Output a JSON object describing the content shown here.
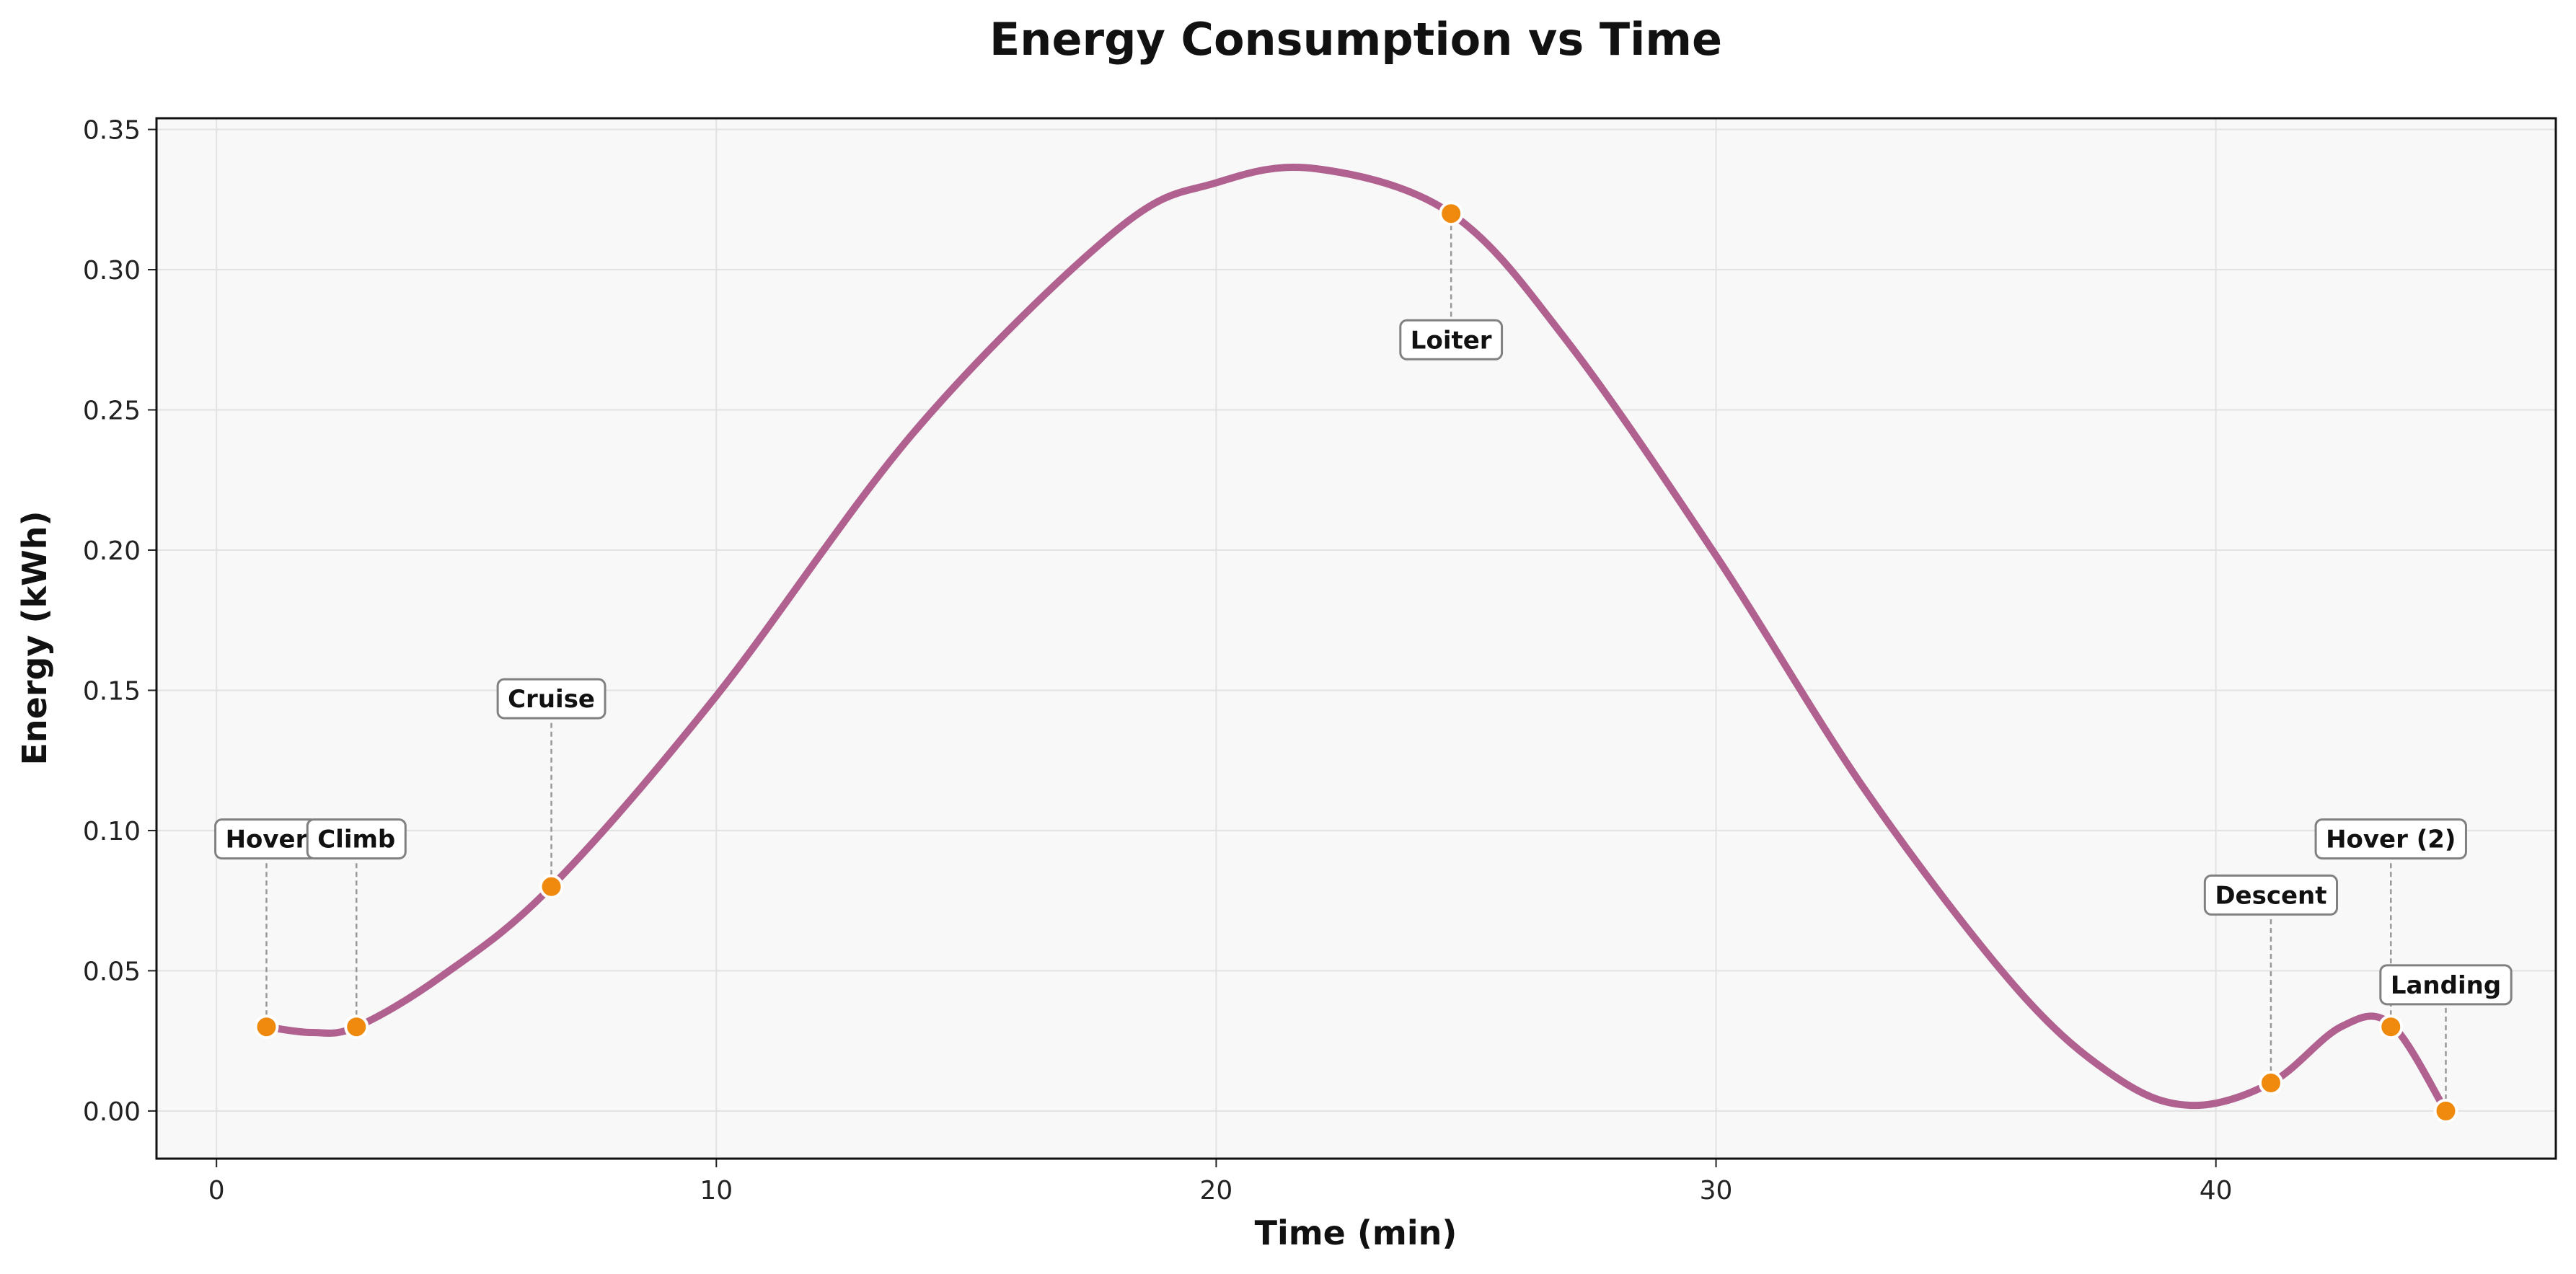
{
  "chart_data": {
    "type": "line",
    "title": "Energy Consumption vs Time",
    "xlabel": "Time (min)",
    "ylabel": "Energy (kWh)",
    "xlim": [
      -1.2,
      46.8
    ],
    "ylim": [
      -0.017,
      0.354
    ],
    "xticks": [
      0,
      10,
      20,
      30,
      40
    ],
    "xtick_labels": [
      "0",
      "10",
      "20",
      "30",
      "40"
    ],
    "yticks": [
      0.0,
      0.05,
      0.1,
      0.15,
      0.2,
      0.25,
      0.3,
      0.35
    ],
    "ytick_labels": [
      "0.00",
      "0.05",
      "0.10",
      "0.15",
      "0.20",
      "0.25",
      "0.30",
      "0.35"
    ],
    "grid": true,
    "line_color": "#b0618f",
    "marker_color": "#ef8a0e",
    "background_color": "#f8f8f8",
    "series": [
      {
        "x": [
          1.0,
          2.8,
          6.7,
          24.7,
          41.1,
          43.5,
          44.6
        ],
        "y": [
          0.03,
          0.03,
          0.08,
          0.32,
          0.01,
          0.03,
          0.0
        ]
      }
    ],
    "curve": {
      "x": [
        1.0,
        1.9,
        2.8,
        4.5,
        6.7,
        10.0,
        14.0,
        18.0,
        20.0,
        22.0,
        24.7,
        27.0,
        30.0,
        33.0,
        36.0,
        38.0,
        39.5,
        41.1,
        42.5,
        43.5,
        44.6
      ],
      "y": [
        0.03,
        0.028,
        0.03,
        0.048,
        0.08,
        0.148,
        0.243,
        0.314,
        0.331,
        0.336,
        0.32,
        0.275,
        0.198,
        0.114,
        0.044,
        0.012,
        0.002,
        0.01,
        0.03,
        0.031,
        0.0
      ]
    },
    "annotations": [
      {
        "label": "Hover",
        "x": 1.0,
        "y": 0.03,
        "text_y": 0.097
      },
      {
        "label": "Climb",
        "x": 2.8,
        "y": 0.03,
        "text_y": 0.097
      },
      {
        "label": "Cruise",
        "x": 6.7,
        "y": 0.08,
        "text_y": 0.147
      },
      {
        "label": "Loiter",
        "x": 24.7,
        "y": 0.32,
        "text_y": 0.275
      },
      {
        "label": "Descent",
        "x": 41.1,
        "y": 0.01,
        "text_y": 0.077
      },
      {
        "label": "Hover (2)",
        "x": 43.5,
        "y": 0.03,
        "text_y": 0.097
      },
      {
        "label": "Landing",
        "x": 44.6,
        "y": 0.0,
        "text_y": 0.045
      }
    ]
  }
}
